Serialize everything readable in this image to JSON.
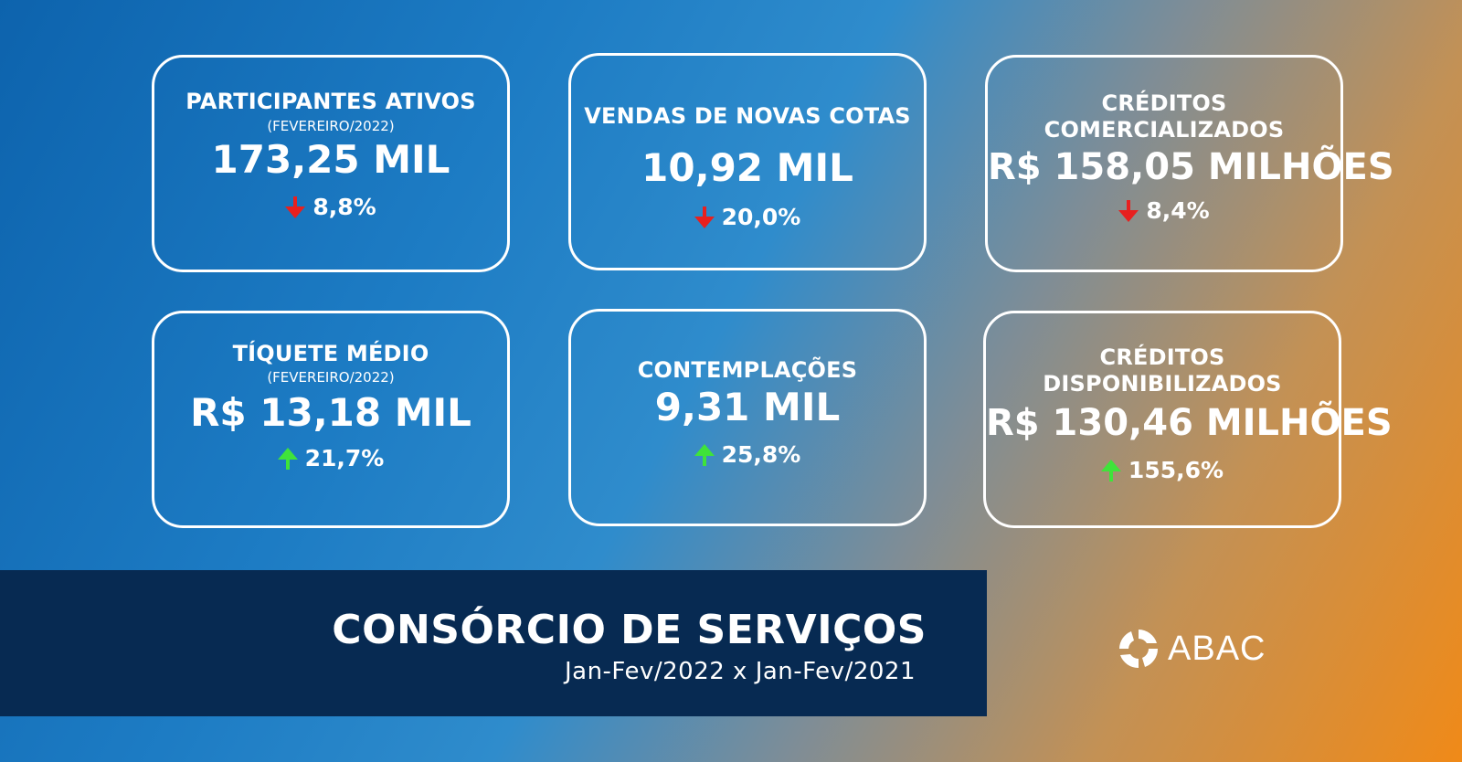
{
  "cards": [
    {
      "title": "PARTICIPANTES ATIVOS",
      "subtitle": "(FEVEREIRO/2022)",
      "value": "173,25 MIL",
      "change": "8,8%",
      "direction": "down"
    },
    {
      "title": "VENDAS DE NOVAS COTAS",
      "value": "10,92 MIL",
      "change": "20,0%",
      "direction": "down"
    },
    {
      "title_line1": "CRÉDITOS",
      "title_line2": "COMERCIALIZADOS",
      "value": "R$ 158,05 MILHÕES",
      "change": "8,4%",
      "direction": "down"
    },
    {
      "title": "TÍQUETE MÉDIO",
      "subtitle": "(FEVEREIRO/2022)",
      "value": "R$ 13,18 MIL",
      "change": "21,7%",
      "direction": "up"
    },
    {
      "title": "CONTEMPLAÇÕES",
      "value": "9,31 MIL",
      "change": "25,8%",
      "direction": "up"
    },
    {
      "title_line1": "CRÉDITOS",
      "title_line2": "DISPONIBILIZADOS",
      "value": "R$ 130,46 MILHÕES",
      "change": "155,6%",
      "direction": "up"
    }
  ],
  "banner": {
    "title": "CONSÓRCIO DE SERVIÇOS",
    "subtitle": "Jan-Fev/2022 x Jan-Fev/2021"
  },
  "logo": {
    "text": "ABAC",
    "icon": "abac-logo-icon"
  },
  "colors": {
    "down": "#e8201f",
    "up": "#3fe33a",
    "banner": "#072a52"
  }
}
